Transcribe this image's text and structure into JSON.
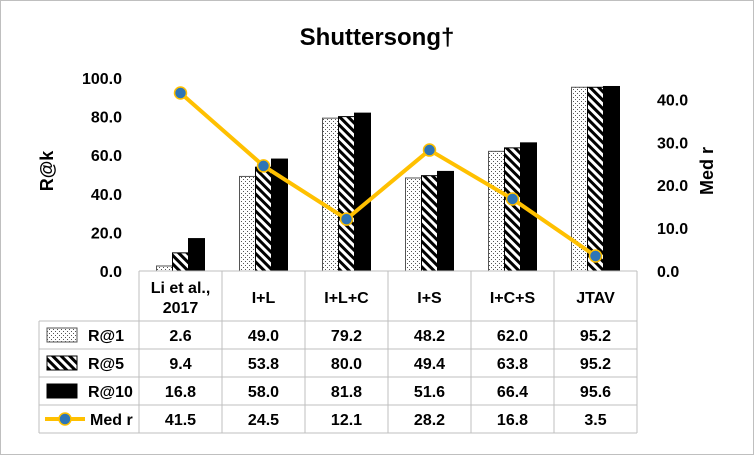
{
  "chart_data": {
    "type": "bar",
    "title": "Shuttersong†",
    "ylabel": "R@k",
    "y2label": "Med r",
    "ylim": [
      0,
      100
    ],
    "y2lim": [
      0,
      45
    ],
    "yticks": [
      "0.0",
      "20.0",
      "40.0",
      "60.0",
      "80.0",
      "100.0"
    ],
    "y2ticks": [
      "0.0",
      "10.0",
      "20.0",
      "30.0",
      "40.0"
    ],
    "categories": [
      "Li et al., 2017",
      "I+L",
      "I+L+C",
      "I+S",
      "I+C+S",
      "JTAV"
    ],
    "categories_lines": [
      [
        "Li et al.,",
        "2017"
      ],
      [
        "I+L"
      ],
      [
        "I+L+C"
      ],
      [
        "I+S"
      ],
      [
        "I+C+S"
      ],
      [
        "JTAV"
      ]
    ],
    "series": [
      {
        "name": "R@1",
        "kind": "bar",
        "pattern": "dots",
        "values": [
          2.6,
          49.0,
          79.2,
          48.2,
          62.0,
          95.2
        ],
        "labels": [
          "2.6",
          "49.0",
          "79.2",
          "48.2",
          "62.0",
          "95.2"
        ]
      },
      {
        "name": "R@5",
        "kind": "bar",
        "pattern": "diagonal-stripes",
        "values": [
          9.4,
          53.8,
          80.0,
          49.4,
          63.8,
          95.2
        ],
        "labels": [
          "9.4",
          "53.8",
          "80.0",
          "49.4",
          "63.8",
          "95.2"
        ]
      },
      {
        "name": "R@10",
        "kind": "bar",
        "pattern": "solid",
        "values": [
          16.8,
          58.0,
          81.8,
          51.6,
          66.4,
          95.6
        ],
        "labels": [
          "16.8",
          "58.0",
          "81.8",
          "51.6",
          "66.4",
          "95.6"
        ]
      },
      {
        "name": "Med r",
        "kind": "line",
        "axis": "secondary",
        "values": [
          41.5,
          24.5,
          12.1,
          28.2,
          16.8,
          3.5
        ],
        "labels": [
          "41.5",
          "24.5",
          "12.1",
          "28.2",
          "16.8",
          "3.5"
        ]
      }
    ],
    "legend": "data-table-below",
    "grid": false,
    "colors": {
      "bar_dark": "#000000",
      "line": "#FFC000",
      "marker": "#2E75B6"
    }
  }
}
